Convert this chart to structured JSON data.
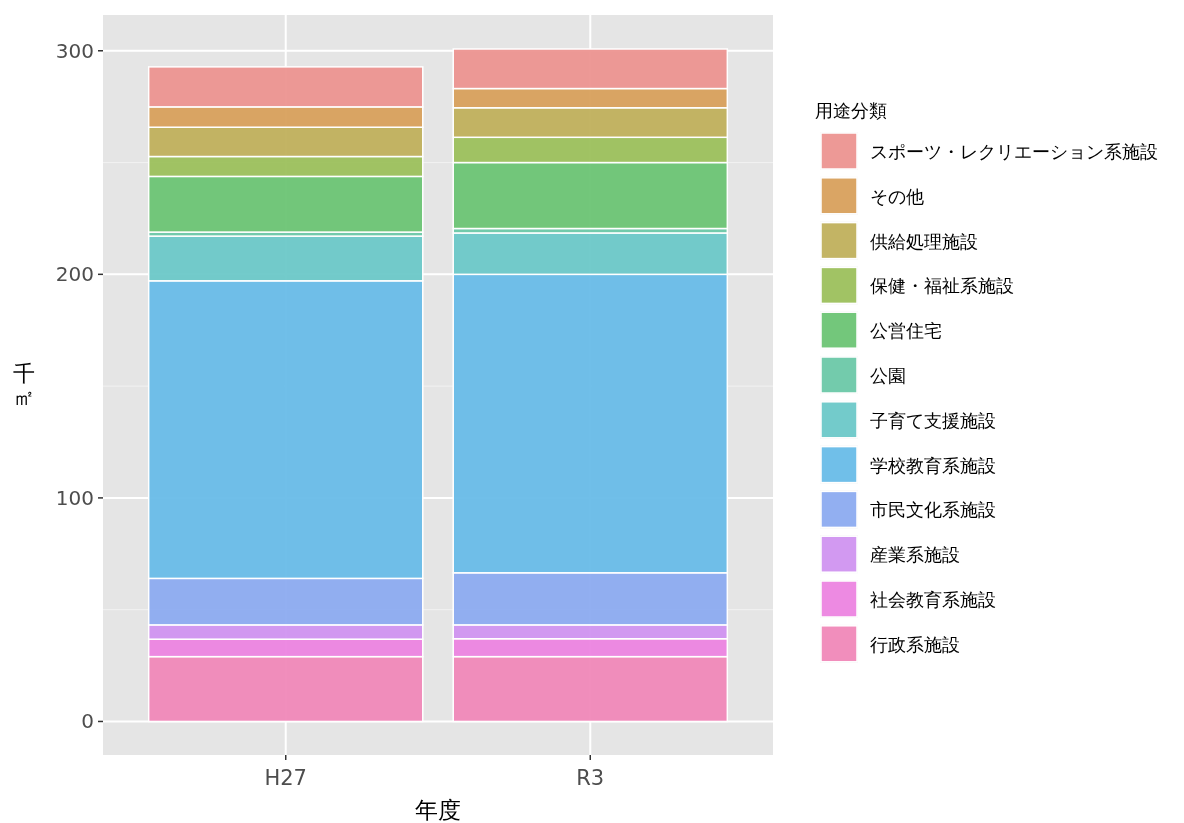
{
  "chart_data": {
    "type": "bar",
    "stacked": true,
    "xlabel": "年度",
    "ylabel": "千㎡",
    "legend_title": "用途分類",
    "categories": [
      "H27",
      "R3"
    ],
    "ylim": [
      -15,
      316
    ],
    "yticks": [
      0,
      100,
      200,
      300
    ],
    "grid": true,
    "legend": "right",
    "series": [
      {
        "name": "行政系施設",
        "color": "#f088b8",
        "values": [
          29.0,
          29.0
        ]
      },
      {
        "name": "社会教育系施設",
        "color": "#ec84e0",
        "values": [
          7.8,
          8.0
        ]
      },
      {
        "name": "産業系施設",
        "color": "#d094f0",
        "values": [
          6.4,
          6.2
        ]
      },
      {
        "name": "市民文化系施設",
        "color": "#8cabf0",
        "values": [
          20.8,
          23.3
        ]
      },
      {
        "name": "学校教育系施設",
        "color": "#68bce8",
        "values": [
          133.1,
          133.5
        ]
      },
      {
        "name": "子育て支援施設",
        "color": "#6cc8c8",
        "values": [
          20.0,
          18.5
        ]
      },
      {
        "name": "公園",
        "color": "#6cc8a8",
        "values": [
          1.8,
          2.0
        ]
      },
      {
        "name": "公営住宅",
        "color": "#6cc474",
        "values": [
          24.9,
          29.5
        ]
      },
      {
        "name": "保健・福祉系施設",
        "color": "#9cc05c",
        "values": [
          8.9,
          11.3
        ]
      },
      {
        "name": "供給処理施設",
        "color": "#c0b05c",
        "values": [
          13.1,
          13.2
        ]
      },
      {
        "name": "その他",
        "color": "#d8a05c",
        "values": [
          9.1,
          8.6
        ]
      },
      {
        "name": "スポーツ・レクリエーション系施設",
        "color": "#ec9490",
        "values": [
          17.9,
          17.7
        ]
      }
    ]
  }
}
